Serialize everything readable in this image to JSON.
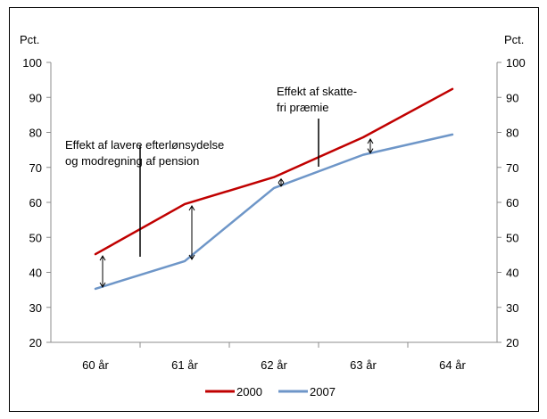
{
  "chart_data": {
    "type": "line",
    "categories": [
      "60 år",
      "61 år",
      "62 år",
      "63 år",
      "64 år"
    ],
    "series": [
      {
        "name": "2000",
        "values": [
          45.2,
          59.5,
          67.2,
          78.6,
          92.4
        ],
        "color": "#c00000"
      },
      {
        "name": "2007",
        "values": [
          35.3,
          43.2,
          64.1,
          73.6,
          79.4
        ],
        "color": "#6e96c8"
      }
    ],
    "ylim": [
      20,
      100
    ],
    "yticks": [
      20,
      30,
      40,
      50,
      60,
      70,
      80,
      90,
      100
    ],
    "yunit_left": "Pct.",
    "yunit_right": "Pct.",
    "legend_position": "bottom",
    "grid": false,
    "annotations": [
      {
        "lines": [
          "Effekt af lavere efterlønsydelse",
          "og modregning af pension"
        ]
      },
      {
        "lines": [
          "Effekt af skatte-",
          "fri præmie"
        ]
      }
    ]
  }
}
